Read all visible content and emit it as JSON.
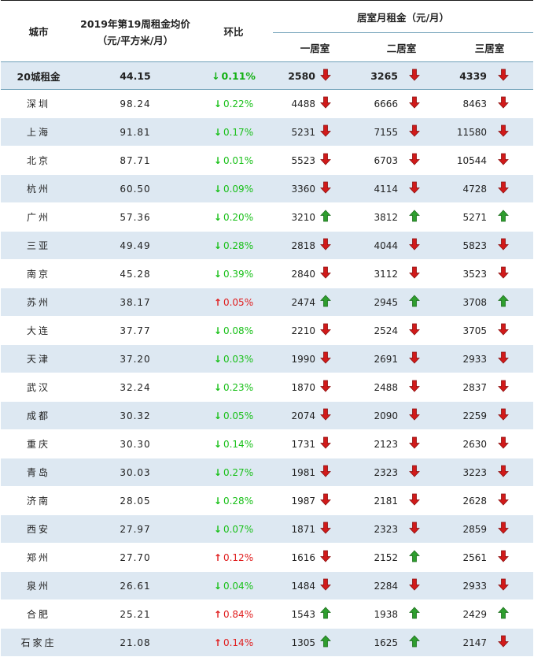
{
  "header": {
    "city": "城市",
    "avg_price_line1": "2019年第19周租金均价",
    "avg_price_line2": "（元/平方米/月）",
    "change": "环比",
    "rent_group": "居室月租金（元/月）",
    "room1": "一居室",
    "room2": "二居室",
    "room3": "三居室"
  },
  "colors": {
    "row_shade": "#dde8f2",
    "down": "#19c019",
    "up": "#e01c1c",
    "arrow_green": "#2e9e2e",
    "arrow_red": "#d11a1a",
    "rule": "#6fa0b8"
  },
  "summary": {
    "city": "20城租金",
    "price": "44.15",
    "change_dir": "down",
    "change_symbol": "↓",
    "change": "0.11%",
    "r1": "2580",
    "r1_dir": "down",
    "r2": "3265",
    "r2_dir": "down",
    "r3": "4339",
    "r3_dir": "down"
  },
  "rows": [
    {
      "city": "深圳",
      "price": "98.24",
      "change_dir": "down",
      "change_symbol": "↓",
      "change": "0.22%",
      "r1": "4488",
      "r1_dir": "down",
      "r2": "6666",
      "r2_dir": "down",
      "r3": "8463",
      "r3_dir": "down"
    },
    {
      "city": "上海",
      "price": "91.81",
      "change_dir": "down",
      "change_symbol": "↓",
      "change": "0.17%",
      "r1": "5231",
      "r1_dir": "down",
      "r2": "7155",
      "r2_dir": "down",
      "r3": "11580",
      "r3_dir": "down"
    },
    {
      "city": "北京",
      "price": "87.71",
      "change_dir": "down",
      "change_symbol": "↓",
      "change": "0.01%",
      "r1": "5523",
      "r1_dir": "down",
      "r2": "6703",
      "r2_dir": "down",
      "r3": "10544",
      "r3_dir": "down"
    },
    {
      "city": "杭州",
      "price": "60.50",
      "change_dir": "down",
      "change_symbol": "↓",
      "change": "0.09%",
      "r1": "3360",
      "r1_dir": "down",
      "r2": "4114",
      "r2_dir": "down",
      "r3": "4728",
      "r3_dir": "down"
    },
    {
      "city": "广州",
      "price": "57.36",
      "change_dir": "down",
      "change_symbol": "↓",
      "change": "0.20%",
      "r1": "3210",
      "r1_dir": "up",
      "r2": "3812",
      "r2_dir": "up",
      "r3": "5271",
      "r3_dir": "up"
    },
    {
      "city": "三亚",
      "price": "49.49",
      "change_dir": "down",
      "change_symbol": "↓",
      "change": "0.28%",
      "r1": "2818",
      "r1_dir": "down",
      "r2": "4044",
      "r2_dir": "down",
      "r3": "5823",
      "r3_dir": "down"
    },
    {
      "city": "南京",
      "price": "45.28",
      "change_dir": "down",
      "change_symbol": "↓",
      "change": "0.39%",
      "r1": "2840",
      "r1_dir": "down",
      "r2": "3112",
      "r2_dir": "down",
      "r3": "3523",
      "r3_dir": "down"
    },
    {
      "city": "苏州",
      "price": "38.17",
      "change_dir": "up",
      "change_symbol": "↑",
      "change": "0.05%",
      "r1": "2474",
      "r1_dir": "up",
      "r2": "2945",
      "r2_dir": "up",
      "r3": "3708",
      "r3_dir": "up"
    },
    {
      "city": "大连",
      "price": "37.77",
      "change_dir": "down",
      "change_symbol": "↓",
      "change": "0.08%",
      "r1": "2210",
      "r1_dir": "down",
      "r2": "2524",
      "r2_dir": "down",
      "r3": "3705",
      "r3_dir": "down"
    },
    {
      "city": "天津",
      "price": "37.20",
      "change_dir": "down",
      "change_symbol": "↓",
      "change": "0.03%",
      "r1": "1990",
      "r1_dir": "down",
      "r2": "2691",
      "r2_dir": "down",
      "r3": "2933",
      "r3_dir": "down"
    },
    {
      "city": "武汉",
      "price": "32.24",
      "change_dir": "down",
      "change_symbol": "↓",
      "change": "0.23%",
      "r1": "1870",
      "r1_dir": "down",
      "r2": "2488",
      "r2_dir": "down",
      "r3": "2837",
      "r3_dir": "down"
    },
    {
      "city": "成都",
      "price": "30.32",
      "change_dir": "down",
      "change_symbol": "↓",
      "change": "0.05%",
      "r1": "2074",
      "r1_dir": "down",
      "r2": "2090",
      "r2_dir": "down",
      "r3": "2259",
      "r3_dir": "down"
    },
    {
      "city": "重庆",
      "price": "30.30",
      "change_dir": "down",
      "change_symbol": "↓",
      "change": "0.14%",
      "r1": "1731",
      "r1_dir": "down",
      "r2": "2123",
      "r2_dir": "down",
      "r3": "2630",
      "r3_dir": "down"
    },
    {
      "city": "青岛",
      "price": "30.03",
      "change_dir": "down",
      "change_symbol": "↓",
      "change": "0.27%",
      "r1": "1981",
      "r1_dir": "down",
      "r2": "2323",
      "r2_dir": "down",
      "r3": "3223",
      "r3_dir": "down"
    },
    {
      "city": "济南",
      "price": "28.05",
      "change_dir": "down",
      "change_symbol": "↓",
      "change": "0.28%",
      "r1": "1987",
      "r1_dir": "down",
      "r2": "2181",
      "r2_dir": "down",
      "r3": "2628",
      "r3_dir": "down"
    },
    {
      "city": "西安",
      "price": "27.97",
      "change_dir": "down",
      "change_symbol": "↓",
      "change": "0.07%",
      "r1": "1871",
      "r1_dir": "down",
      "r2": "2323",
      "r2_dir": "down",
      "r3": "2859",
      "r3_dir": "down"
    },
    {
      "city": "郑州",
      "price": "27.70",
      "change_dir": "up",
      "change_symbol": "↑",
      "change": "0.12%",
      "r1": "1616",
      "r1_dir": "down",
      "r2": "2152",
      "r2_dir": "up",
      "r3": "2561",
      "r3_dir": "down"
    },
    {
      "city": "泉州",
      "price": "26.61",
      "change_dir": "down",
      "change_symbol": "↓",
      "change": "0.04%",
      "r1": "1484",
      "r1_dir": "down",
      "r2": "2284",
      "r2_dir": "down",
      "r3": "2933",
      "r3_dir": "down"
    },
    {
      "city": "合肥",
      "price": "25.21",
      "change_dir": "up",
      "change_symbol": "↑",
      "change": "0.84%",
      "r1": "1543",
      "r1_dir": "up",
      "r2": "1938",
      "r2_dir": "up",
      "r3": "2429",
      "r3_dir": "up"
    },
    {
      "city": "石家庄",
      "price": "21.08",
      "change_dir": "up",
      "change_symbol": "↑",
      "change": "0.14%",
      "r1": "1305",
      "r1_dir": "up",
      "r2": "1625",
      "r2_dir": "up",
      "r3": "2147",
      "r3_dir": "down"
    }
  ]
}
